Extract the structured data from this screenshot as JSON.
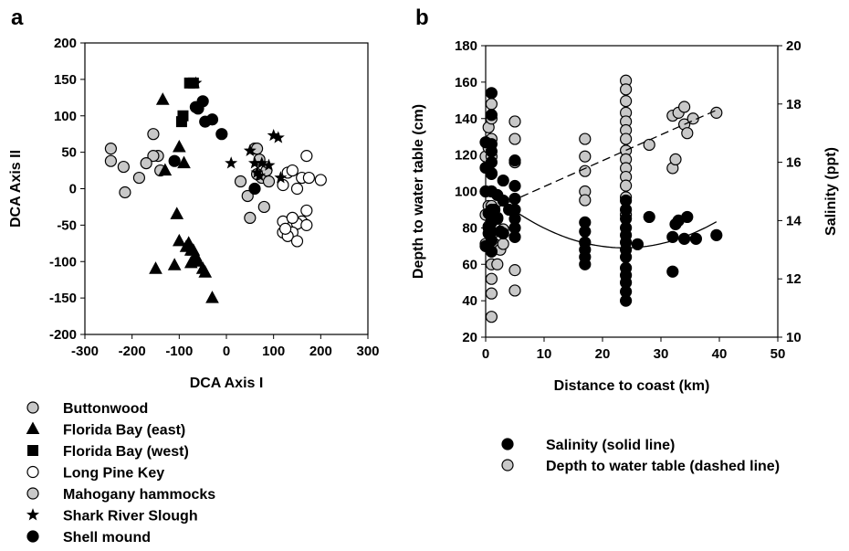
{
  "chart_data": [
    {
      "panel_label": "a",
      "type": "scatter",
      "xlabel": "DCA Axis I",
      "ylabel": "DCA Axis II",
      "xlim": [
        -300,
        300
      ],
      "ylim": [
        -200,
        200
      ],
      "xticks": [
        -300,
        -200,
        -100,
        0,
        100,
        200,
        300
      ],
      "yticks": [
        -200,
        -150,
        -100,
        -50,
        0,
        50,
        100,
        150,
        200
      ],
      "series": [
        {
          "name": "Buttonwood",
          "marker": "circle",
          "color": "#c8c8c8",
          "points": [
            [
              -245,
              55
            ],
            [
              -245,
              38
            ],
            [
              -218,
              30
            ],
            [
              -215,
              -5
            ],
            [
              -185,
              15
            ],
            [
              -155,
              75
            ],
            [
              -145,
              45
            ],
            [
              -155,
              45
            ],
            [
              -140,
              25
            ],
            [
              -170,
              35
            ]
          ]
        },
        {
          "name": "Florida Bay (east)",
          "marker": "triangle",
          "color": "#000000",
          "points": [
            [
              -135,
              122
            ],
            [
              -130,
              25
            ],
            [
              -100,
              57
            ],
            [
              -90,
              35
            ],
            [
              -105,
              -35
            ],
            [
              -100,
              -72
            ],
            [
              -85,
              -80
            ],
            [
              -80,
              -75
            ],
            [
              -75,
              -85
            ],
            [
              -70,
              -98
            ],
            [
              -65,
              -93
            ],
            [
              -60,
              -100
            ],
            [
              -50,
              -110
            ],
            [
              -45,
              -115
            ],
            [
              -30,
              -150
            ],
            [
              -150,
              -110
            ],
            [
              -110,
              -105
            ],
            [
              -75,
              -102
            ],
            [
              -70,
              -85
            ]
          ]
        },
        {
          "name": "Florida Bay (west)",
          "marker": "square",
          "color": "#000000",
          "points": [
            [
              -70,
              145
            ],
            [
              -95,
              92
            ],
            [
              -92,
              100
            ],
            [
              -78,
              145
            ]
          ]
        },
        {
          "name": "Long Pine Key",
          "marker": "circle",
          "color": "#ffffff",
          "points": [
            [
              120,
              5
            ],
            [
              130,
              22
            ],
            [
              140,
              25
            ],
            [
              150,
              0
            ],
            [
              160,
              15
            ],
            [
              170,
              45
            ],
            [
              175,
              15
            ],
            [
              200,
              12
            ],
            [
              170,
              -30
            ],
            [
              160,
              -45
            ],
            [
              150,
              -48
            ],
            [
              140,
              -60
            ],
            [
              120,
              -45
            ],
            [
              120,
              -60
            ],
            [
              130,
              -65
            ],
            [
              150,
              -72
            ],
            [
              140,
              -40
            ],
            [
              170,
              -50
            ],
            [
              125,
              -55
            ]
          ]
        },
        {
          "name": "Mahogany hammocks",
          "marker": "circle",
          "color": "#c8c8c8",
          "points": [
            [
              50,
              -40
            ],
            [
              60,
              55
            ],
            [
              65,
              55
            ],
            [
              70,
              40
            ],
            [
              75,
              15
            ],
            [
              80,
              -25
            ],
            [
              85,
              25
            ],
            [
              90,
              10
            ],
            [
              30,
              10
            ],
            [
              45,
              -10
            ],
            [
              65,
              20
            ]
          ]
        },
        {
          "name": "Shark River Slough",
          "marker": "star",
          "color": "#000000",
          "points": [
            [
              -65,
              145
            ],
            [
              10,
              35
            ],
            [
              50,
              52
            ],
            [
              60,
              35
            ],
            [
              70,
              18
            ],
            [
              75,
              35
            ],
            [
              90,
              32
            ],
            [
              100,
              73
            ],
            [
              110,
              70
            ],
            [
              115,
              15
            ],
            [
              65,
              22
            ]
          ]
        },
        {
          "name": "Shell mound",
          "marker": "circle",
          "color": "#000000",
          "points": [
            [
              -60,
              110
            ],
            [
              -50,
              120
            ],
            [
              -45,
              92
            ],
            [
              -30,
              95
            ],
            [
              -10,
              75
            ],
            [
              -65,
              112
            ],
            [
              -110,
              38
            ],
            [
              60,
              0
            ]
          ]
        }
      ]
    },
    {
      "panel_label": "b",
      "type": "scatter",
      "xlabel": "Distance to coast (km)",
      "ylabel": "Depth to water table (cm)",
      "y2label": "Salinity (ppt)",
      "xlim": [
        0,
        50
      ],
      "ylim": [
        20,
        180
      ],
      "y2lim": [
        10,
        20
      ],
      "xticks": [
        0,
        10,
        20,
        30,
        40,
        50
      ],
      "yticks": [
        20,
        40,
        60,
        80,
        100,
        120,
        140,
        160,
        180
      ],
      "y2ticks": [
        10,
        12,
        14,
        16,
        18,
        20
      ],
      "series": [
        {
          "name": "Salinity (solid line)",
          "marker": "circle",
          "color": "#000000",
          "axis": "left",
          "fit": "quadratic",
          "line": "solid",
          "points": [
            [
              0,
              70
            ],
            [
              0,
              100
            ],
            [
              0,
              113
            ],
            [
              0,
              127
            ],
            [
              0.5,
              88
            ],
            [
              0.5,
              77
            ],
            [
              0.5,
              80
            ],
            [
              1,
              154
            ],
            [
              1,
              142
            ],
            [
              1,
              126
            ],
            [
              1,
              122
            ],
            [
              1,
              116
            ],
            [
              1,
              110
            ],
            [
              1,
              100
            ],
            [
              1,
              90
            ],
            [
              1,
              83
            ],
            [
              1,
              78
            ],
            [
              1,
              73
            ],
            [
              1,
              67
            ],
            [
              1.5,
              90
            ],
            [
              2,
              98
            ],
            [
              2,
              85
            ],
            [
              2.5,
              78
            ],
            [
              3,
              106
            ],
            [
              3,
              95
            ],
            [
              3,
              77
            ],
            [
              4,
              90
            ],
            [
              5,
              117
            ],
            [
              5,
              103
            ],
            [
              5,
              96
            ],
            [
              5,
              90
            ],
            [
              5,
              85
            ],
            [
              5,
              80
            ],
            [
              5,
              75
            ],
            [
              17,
              83
            ],
            [
              17,
              78
            ],
            [
              17,
              72
            ],
            [
              17,
              68
            ],
            [
              17,
              64
            ],
            [
              17,
              60
            ],
            [
              24,
              95
            ],
            [
              24,
              90
            ],
            [
              24,
              85
            ],
            [
              24,
              80
            ],
            [
              24,
              76
            ],
            [
              24,
              72
            ],
            [
              24,
              68
            ],
            [
              24,
              64
            ],
            [
              24,
              58
            ],
            [
              24,
              54
            ],
            [
              24,
              50
            ],
            [
              24,
              45
            ],
            [
              24,
              40
            ],
            [
              26,
              71
            ],
            [
              28,
              86
            ],
            [
              32,
              75
            ],
            [
              32,
              56
            ],
            [
              32.5,
              82
            ],
            [
              33,
              84
            ],
            [
              34,
              74
            ],
            [
              34.5,
              86
            ],
            [
              36,
              74
            ],
            [
              39.5,
              76
            ]
          ]
        },
        {
          "name": "Depth to water table (dashed line)",
          "marker": "circle",
          "color": "#c8c8c8",
          "axis": "right",
          "fit": "linear",
          "line": "dashed",
          "points": [
            [
              0,
              16.2
            ],
            [
              0,
              15.0
            ],
            [
              0,
              14.2
            ],
            [
              0,
              13.2
            ],
            [
              0.5,
              17.2
            ],
            [
              0.5,
              16.5
            ],
            [
              0.5,
              14.5
            ],
            [
              0.5,
              13.8
            ],
            [
              1,
              18.0
            ],
            [
              1,
              17.5
            ],
            [
              1,
              16.8
            ],
            [
              1,
              16.2
            ],
            [
              1,
              15.6
            ],
            [
              1,
              15.0
            ],
            [
              1,
              14.5
            ],
            [
              1,
              14.0
            ],
            [
              1,
              13.5
            ],
            [
              1,
              13.0
            ],
            [
              1,
              12.5
            ],
            [
              1,
              12.0
            ],
            [
              1,
              11.5
            ],
            [
              1,
              10.7
            ],
            [
              1.5,
              13.2
            ],
            [
              2,
              12.5
            ],
            [
              2,
              14.1
            ],
            [
              2.5,
              13.0
            ],
            [
              3,
              13.2
            ],
            [
              3,
              13.7
            ],
            [
              5,
              17.4
            ],
            [
              5,
              16.8
            ],
            [
              5,
              16.0
            ],
            [
              5,
              12.3
            ],
            [
              5,
              11.6
            ],
            [
              17,
              16.8
            ],
            [
              17,
              16.2
            ],
            [
              17,
              15.7
            ],
            [
              17,
              15.0
            ],
            [
              17,
              14.7
            ],
            [
              24,
              18.8
            ],
            [
              24,
              18.5
            ],
            [
              24,
              18.1
            ],
            [
              24,
              17.7
            ],
            [
              24,
              17.4
            ],
            [
              24,
              17.1
            ],
            [
              24,
              16.8
            ],
            [
              24,
              16.4
            ],
            [
              24,
              16.1
            ],
            [
              24,
              15.8
            ],
            [
              24,
              15.5
            ],
            [
              24,
              15.2
            ],
            [
              24,
              14.8
            ],
            [
              24,
              14.2
            ],
            [
              28,
              16.6
            ],
            [
              32,
              17.6
            ],
            [
              32,
              15.8
            ],
            [
              32.5,
              16.1
            ],
            [
              33,
              17.7
            ],
            [
              34,
              17.9
            ],
            [
              34,
              17.3
            ],
            [
              34.5,
              17.0
            ],
            [
              35.5,
              17.5
            ],
            [
              39.5,
              17.7
            ]
          ]
        }
      ]
    }
  ],
  "legend_a": [
    {
      "label": "Buttonwood",
      "marker": "circle",
      "color": "#c8c8c8"
    },
    {
      "label": "Florida Bay (east)",
      "marker": "triangle",
      "color": "#000000"
    },
    {
      "label": "Florida Bay (west)",
      "marker": "square",
      "color": "#000000"
    },
    {
      "label": "Long Pine Key",
      "marker": "circle",
      "color": "#ffffff"
    },
    {
      "label": "Mahogany hammocks",
      "marker": "circle",
      "color": "#c8c8c8"
    },
    {
      "label": "Shark River Slough",
      "marker": "star",
      "color": "#000000"
    },
    {
      "label": "Shell mound",
      "marker": "circle",
      "color": "#000000"
    }
  ],
  "legend_b": [
    {
      "label": "Salinity (solid line)",
      "marker": "circle",
      "color": "#000000"
    },
    {
      "label": "Depth to water table (dashed line)",
      "marker": "circle",
      "color": "#c8c8c8"
    }
  ]
}
